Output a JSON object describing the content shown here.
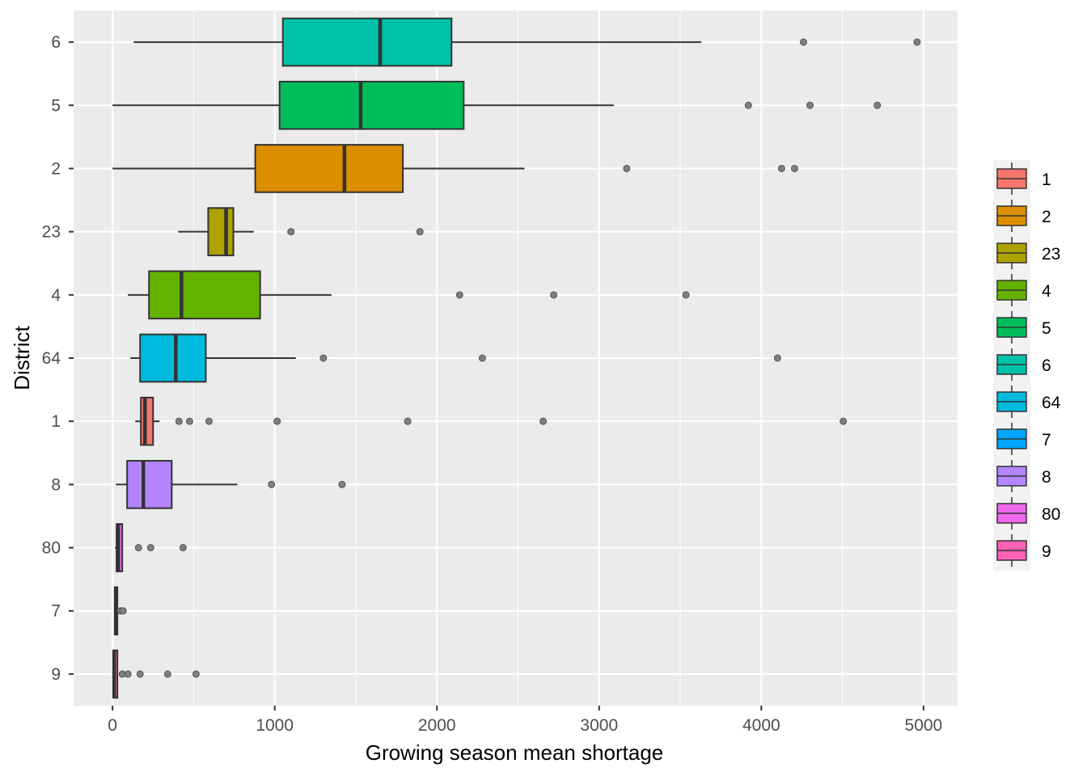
{
  "chart_data": {
    "type": "boxplot",
    "orientation": "horizontal",
    "title": "",
    "xlabel": "Growing season mean shortage",
    "ylabel": "District",
    "xlim": [
      -240,
      5210
    ],
    "x_ticks": [
      0,
      1000,
      2000,
      3000,
      4000,
      5000
    ],
    "x_tick_labels": [
      "0",
      "1000",
      "2000",
      "3000",
      "4000",
      "5000"
    ],
    "grid": true,
    "legend_position": "right",
    "categories": [
      "6",
      "5",
      "2",
      "23",
      "4",
      "64",
      "1",
      "8",
      "80",
      "7",
      "9"
    ],
    "legend": [
      {
        "label": "1",
        "color": "#F8766D"
      },
      {
        "label": "2",
        "color": "#DB8E00"
      },
      {
        "label": "23",
        "color": "#AEA200"
      },
      {
        "label": "4",
        "color": "#64B200"
      },
      {
        "label": "5",
        "color": "#00BD5C"
      },
      {
        "label": "6",
        "color": "#00C1A7"
      },
      {
        "label": "64",
        "color": "#00BADE"
      },
      {
        "label": "7",
        "color": "#00A6FF"
      },
      {
        "label": "8",
        "color": "#B385FF"
      },
      {
        "label": "80",
        "color": "#EF67EB"
      },
      {
        "label": "9",
        "color": "#FF63B6"
      }
    ],
    "series": [
      {
        "category": "6",
        "color": "#00C1A7",
        "whisker_low": 130,
        "q1": 1050,
        "median": 1650,
        "q3": 2090,
        "whisker_high": 3630,
        "outliers": [
          4260,
          4960
        ]
      },
      {
        "category": "5",
        "color": "#00BD5C",
        "whisker_low": 0,
        "q1": 1030,
        "median": 1530,
        "q3": 2165,
        "whisker_high": 3090,
        "outliers": [
          3920,
          4300,
          4715
        ]
      },
      {
        "category": "2",
        "color": "#DB8E00",
        "whisker_low": 0,
        "q1": 880,
        "median": 1430,
        "q3": 1790,
        "whisker_high": 2540,
        "outliers": [
          3170,
          4125,
          4205
        ]
      },
      {
        "category": "23",
        "color": "#AEA200",
        "whisker_low": 405,
        "q1": 590,
        "median": 700,
        "q3": 745,
        "whisker_high": 870,
        "outliers": [
          1100,
          1895
        ]
      },
      {
        "category": "4",
        "color": "#64B200",
        "whisker_low": 95,
        "q1": 225,
        "median": 425,
        "q3": 910,
        "whisker_high": 1350,
        "outliers": [
          2140,
          2720,
          3535
        ]
      },
      {
        "category": "64",
        "color": "#00BADE",
        "whisker_low": 110,
        "q1": 170,
        "median": 390,
        "q3": 575,
        "whisker_high": 1130,
        "outliers": [
          1300,
          2280,
          4100
        ]
      },
      {
        "category": "1",
        "color": "#F8766D",
        "whisker_low": 140,
        "q1": 175,
        "median": 200,
        "q3": 250,
        "whisker_high": 290,
        "outliers": [
          410,
          475,
          595,
          1015,
          1820,
          2655,
          4505
        ]
      },
      {
        "category": "8",
        "color": "#B385FF",
        "whisker_low": 20,
        "q1": 90,
        "median": 190,
        "q3": 365,
        "whisker_high": 770,
        "outliers": [
          980,
          1415
        ]
      },
      {
        "category": "80",
        "color": "#EF67EB",
        "whisker_low": 15,
        "q1": 25,
        "median": 35,
        "q3": 60,
        "whisker_high": 60,
        "outliers": [
          160,
          235,
          435
        ]
      },
      {
        "category": "7",
        "color": "#00A6FF",
        "whisker_low": 10,
        "q1": 15,
        "median": 20,
        "q3": 30,
        "whisker_high": 30,
        "outliers": [
          50,
          65
        ]
      },
      {
        "category": "9",
        "color": "#FF63B6",
        "whisker_low": 0,
        "q1": 5,
        "median": 10,
        "q3": 30,
        "whisker_high": 30,
        "outliers": [
          60,
          95,
          170,
          340,
          515
        ]
      }
    ]
  }
}
